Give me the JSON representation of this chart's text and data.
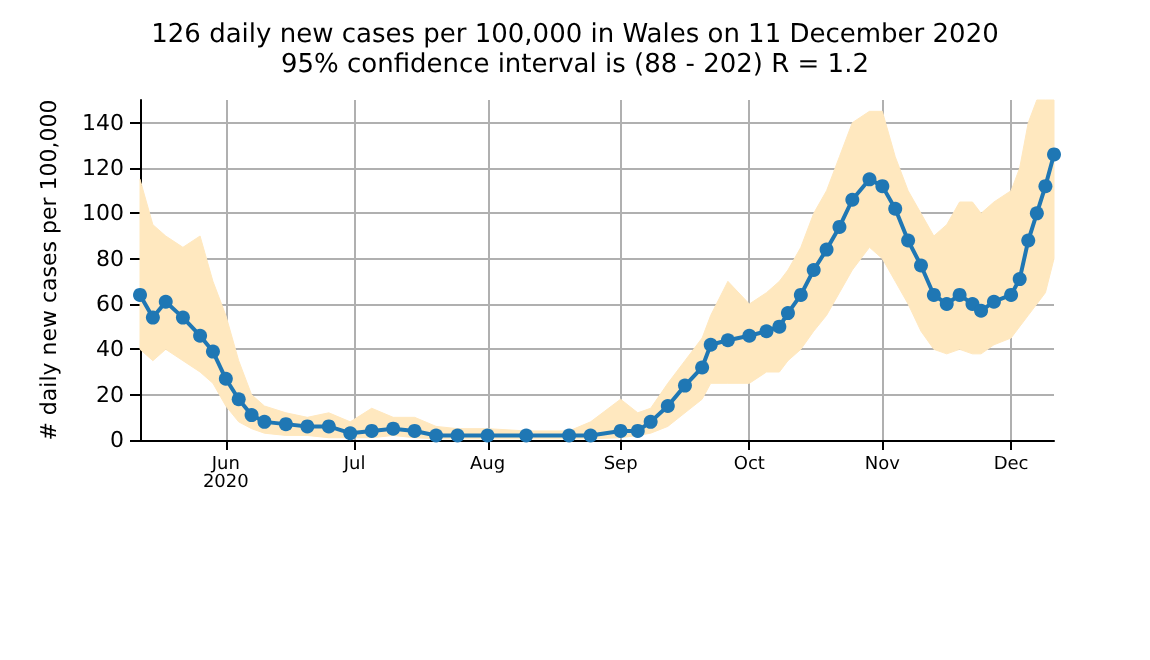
{
  "chart_data": {
    "type": "line",
    "title": "126 daily new cases per 100,000 in Wales on 11 December 2020",
    "subtitle": "95% confidence interval is (88 - 202) R = 1.2",
    "ylabel": "# daily new cases per 100,000",
    "x": [
      "2020-05-12",
      "2020-05-15",
      "2020-05-18",
      "2020-05-22",
      "2020-05-26",
      "2020-05-29",
      "2020-06-01",
      "2020-06-04",
      "2020-06-07",
      "2020-06-10",
      "2020-06-15",
      "2020-06-20",
      "2020-06-25",
      "2020-06-30",
      "2020-07-05",
      "2020-07-10",
      "2020-07-15",
      "2020-07-20",
      "2020-07-25",
      "2020-08-01",
      "2020-08-10",
      "2020-08-20",
      "2020-08-25",
      "2020-09-01",
      "2020-09-05",
      "2020-09-08",
      "2020-09-12",
      "2020-09-16",
      "2020-09-20",
      "2020-09-22",
      "2020-09-26",
      "2020-10-01",
      "2020-10-05",
      "2020-10-08",
      "2020-10-10",
      "2020-10-13",
      "2020-10-16",
      "2020-10-19",
      "2020-10-22",
      "2020-10-25",
      "2020-10-29",
      "2020-11-01",
      "2020-11-04",
      "2020-11-07",
      "2020-11-10",
      "2020-11-13",
      "2020-11-16",
      "2020-11-19",
      "2020-11-22",
      "2020-11-24",
      "2020-11-27",
      "2020-12-01",
      "2020-12-03",
      "2020-12-05",
      "2020-12-07",
      "2020-12-09",
      "2020-12-11"
    ],
    "series": [
      {
        "color": "#1f77b4",
        "values": [
          64,
          54,
          61,
          54,
          46,
          39,
          27,
          18,
          11,
          8,
          7,
          6,
          6,
          3,
          4,
          5,
          4,
          2,
          2,
          2,
          2,
          2,
          2,
          4,
          4,
          8,
          15,
          24,
          32,
          42,
          44,
          46,
          48,
          50,
          56,
          64,
          75,
          84,
          94,
          106,
          115,
          112,
          102,
          88,
          77,
          64,
          60,
          64,
          60,
          57,
          61,
          64,
          71,
          88,
          100,
          112,
          126
        ],
        "lower": [
          40,
          35,
          40,
          35,
          30,
          25,
          15,
          8,
          5,
          3,
          2,
          2,
          1,
          1,
          1,
          2,
          1,
          0.5,
          0.5,
          0.5,
          0.5,
          0.5,
          0.5,
          1,
          2,
          3,
          6,
          12,
          18,
          25,
          25,
          25,
          30,
          30,
          35,
          40,
          48,
          55,
          65,
          75,
          85,
          80,
          70,
          60,
          48,
          40,
          38,
          40,
          38,
          38,
          42,
          45,
          50,
          55,
          60,
          65,
          80
        ],
        "upper": [
          115,
          95,
          90,
          85,
          90,
          70,
          55,
          35,
          20,
          15,
          12,
          10,
          12,
          8,
          14,
          10,
          10,
          6,
          5,
          5,
          4,
          4,
          8,
          18,
          12,
          14,
          25,
          35,
          45,
          55,
          70,
          60,
          65,
          70,
          75,
          85,
          100,
          110,
          125,
          140,
          145,
          145,
          125,
          110,
          100,
          90,
          95,
          105,
          105,
          100,
          105,
          110,
          120,
          140,
          150,
          150,
          150
        ]
      }
    ],
    "xlim": [
      "2020-05-12",
      "2020-12-11"
    ],
    "xticks": [
      {
        "value": "2020-06-01",
        "label": "Jun\n2020"
      },
      {
        "value": "2020-07-01",
        "label": "Jul"
      },
      {
        "value": "2020-08-01",
        "label": "Aug"
      },
      {
        "value": "2020-09-01",
        "label": "Sep"
      },
      {
        "value": "2020-10-01",
        "label": "Oct"
      },
      {
        "value": "2020-11-01",
        "label": "Nov"
      },
      {
        "value": "2020-12-01",
        "label": "Dec"
      }
    ],
    "ylim": [
      0,
      150
    ],
    "yticks": [
      0,
      20,
      40,
      60,
      80,
      100,
      120,
      140
    ],
    "grid": true,
    "marker": "circle",
    "line_style": "solid"
  }
}
